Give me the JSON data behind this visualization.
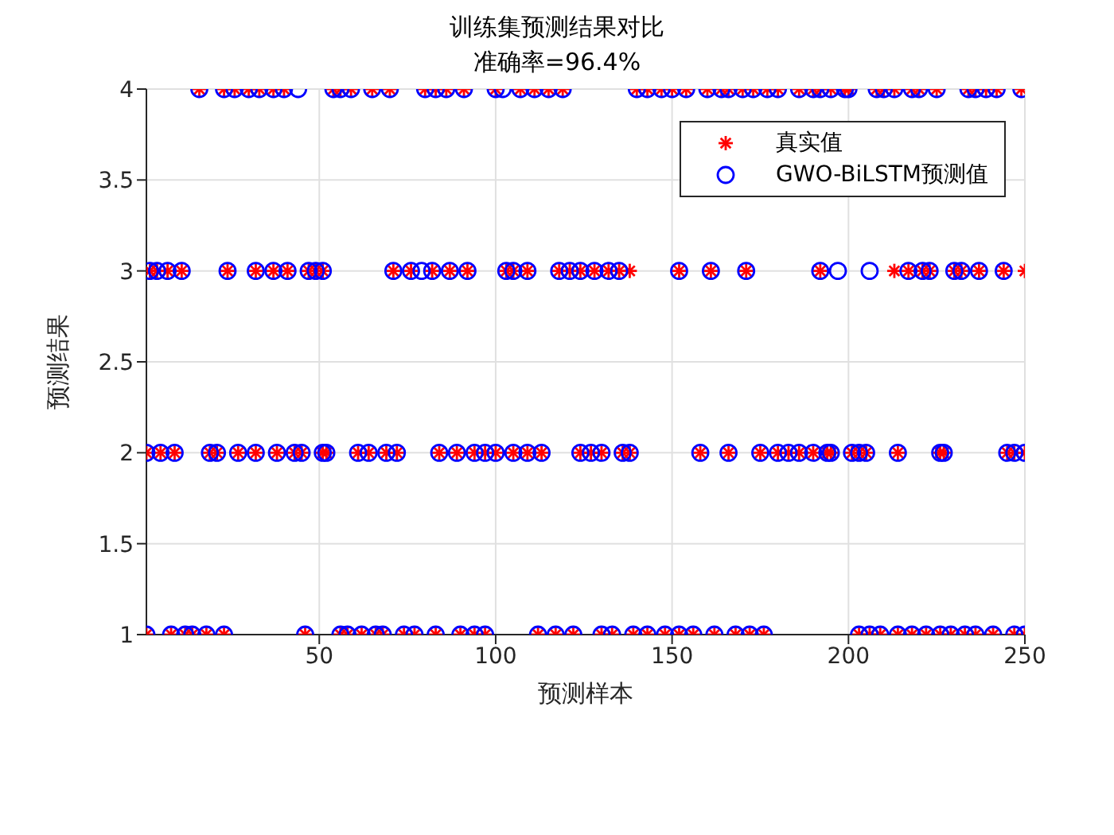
{
  "chart_data": {
    "type": "scatter",
    "title": "训练集预测结果对比",
    "subtitle": "准确率=96.4%",
    "xlabel": "预测样本",
    "ylabel": "预测结果",
    "xlim": [
      1,
      250
    ],
    "xticks": [
      50,
      100,
      150,
      200,
      250
    ],
    "ylim": [
      1,
      4
    ],
    "yticks": [
      1,
      1.5,
      2,
      2.5,
      3,
      3.5,
      4
    ],
    "grid": true,
    "legend": "top right",
    "series": [
      {
        "name": "真实值",
        "color": "#ff0000",
        "marker": "cross",
        "x": [
          16,
          23,
          26,
          30,
          33,
          37,
          40,
          54,
          56,
          59,
          65,
          70,
          80,
          83,
          86,
          91,
          100,
          107,
          111,
          115,
          119,
          140,
          143,
          147,
          150,
          154,
          160,
          164,
          166,
          170,
          173,
          177,
          180,
          186,
          190,
          192,
          195,
          199,
          200,
          208,
          210,
          213,
          218,
          220,
          225,
          234,
          236,
          239,
          242,
          249,
          2,
          4,
          7,
          11,
          24,
          32,
          37,
          41,
          47,
          49,
          51,
          71,
          76,
          82,
          87,
          92,
          103,
          105,
          109,
          118,
          121,
          124,
          128,
          132,
          135,
          152,
          161,
          171,
          192,
          217,
          221,
          223,
          230,
          232,
          237,
          244,
          138,
          213,
          250,
          1,
          5,
          9,
          19,
          21,
          27,
          32,
          38,
          43,
          45,
          51,
          52,
          61,
          64,
          69,
          72,
          84,
          89,
          94,
          97,
          100,
          105,
          109,
          113,
          124,
          127,
          130,
          136,
          138,
          158,
          166,
          175,
          180,
          183,
          186,
          190,
          194,
          195,
          201,
          203,
          205,
          214,
          226,
          227,
          245,
          247,
          250,
          1,
          8,
          12,
          14,
          18,
          23,
          46,
          56,
          58,
          62,
          66,
          68,
          74,
          77,
          83,
          90,
          94,
          97,
          112,
          117,
          122,
          130,
          133,
          139,
          143,
          148,
          152,
          156,
          162,
          168,
          172,
          176,
          203,
          206,
          209,
          214,
          218,
          222,
          226,
          229,
          233,
          236,
          241,
          247,
          250
        ],
        "values": [
          4,
          4,
          4,
          4,
          4,
          4,
          4,
          4,
          4,
          4,
          4,
          4,
          4,
          4,
          4,
          4,
          4,
          4,
          4,
          4,
          4,
          4,
          4,
          4,
          4,
          4,
          4,
          4,
          4,
          4,
          4,
          4,
          4,
          4,
          4,
          4,
          4,
          4,
          4,
          4,
          4,
          4,
          4,
          4,
          4,
          4,
          4,
          4,
          4,
          4,
          3,
          3,
          3,
          3,
          3,
          3,
          3,
          3,
          3,
          3,
          3,
          3,
          3,
          3,
          3,
          3,
          3,
          3,
          3,
          3,
          3,
          3,
          3,
          3,
          3,
          3,
          3,
          3,
          3,
          3,
          3,
          3,
          3,
          3,
          3,
          3,
          3,
          3,
          3,
          2,
          2,
          2,
          2,
          2,
          2,
          2,
          2,
          2,
          2,
          2,
          2,
          2,
          2,
          2,
          2,
          2,
          2,
          2,
          2,
          2,
          2,
          2,
          2,
          2,
          2,
          2,
          2,
          2,
          2,
          2,
          2,
          2,
          2,
          2,
          2,
          2,
          2,
          2,
          2,
          2,
          2,
          2,
          2,
          2,
          2,
          2,
          1,
          1,
          1,
          1,
          1,
          1,
          1,
          1,
          1,
          1,
          1,
          1,
          1,
          1,
          1,
          1,
          1,
          1,
          1,
          1,
          1,
          1,
          1,
          1,
          1,
          1,
          1,
          1,
          1,
          1,
          1,
          1,
          1,
          1,
          1,
          1,
          1,
          1,
          1,
          1,
          1,
          1,
          1,
          1,
          1
        ]
      },
      {
        "name": "GWO-BiLSTM预测值",
        "color": "#0000ff",
        "marker": "circle",
        "x": [
          16,
          23,
          26,
          30,
          33,
          37,
          40,
          54,
          56,
          59,
          65,
          70,
          80,
          83,
          86,
          91,
          100,
          107,
          111,
          115,
          119,
          140,
          143,
          147,
          150,
          154,
          160,
          164,
          166,
          170,
          173,
          177,
          180,
          186,
          190,
          192,
          195,
          199,
          200,
          208,
          210,
          213,
          218,
          220,
          225,
          234,
          236,
          239,
          242,
          249,
          44,
          102,
          2,
          4,
          7,
          11,
          24,
          32,
          37,
          41,
          47,
          49,
          51,
          71,
          76,
          82,
          87,
          92,
          103,
          105,
          109,
          118,
          121,
          124,
          128,
          132,
          135,
          152,
          161,
          171,
          192,
          217,
          221,
          223,
          230,
          232,
          237,
          244,
          79,
          197,
          206,
          1,
          5,
          9,
          19,
          21,
          27,
          32,
          38,
          43,
          45,
          51,
          52,
          61,
          64,
          69,
          72,
          84,
          89,
          94,
          97,
          100,
          105,
          109,
          113,
          124,
          127,
          130,
          136,
          138,
          158,
          166,
          175,
          180,
          183,
          186,
          190,
          194,
          195,
          201,
          203,
          205,
          214,
          226,
          227,
          245,
          247,
          250,
          1,
          8,
          12,
          14,
          18,
          23,
          46,
          56,
          58,
          62,
          66,
          68,
          74,
          77,
          83,
          90,
          94,
          97,
          112,
          117,
          122,
          130,
          133,
          139,
          143,
          148,
          152,
          156,
          162,
          168,
          172,
          176,
          203,
          206,
          209,
          214,
          218,
          222,
          226,
          229,
          233,
          236,
          241,
          247,
          250
        ],
        "values": [
          4,
          4,
          4,
          4,
          4,
          4,
          4,
          4,
          4,
          4,
          4,
          4,
          4,
          4,
          4,
          4,
          4,
          4,
          4,
          4,
          4,
          4,
          4,
          4,
          4,
          4,
          4,
          4,
          4,
          4,
          4,
          4,
          4,
          4,
          4,
          4,
          4,
          4,
          4,
          4,
          4,
          4,
          4,
          4,
          4,
          4,
          4,
          4,
          4,
          4,
          4,
          4,
          3,
          3,
          3,
          3,
          3,
          3,
          3,
          3,
          3,
          3,
          3,
          3,
          3,
          3,
          3,
          3,
          3,
          3,
          3,
          3,
          3,
          3,
          3,
          3,
          3,
          3,
          3,
          3,
          3,
          3,
          3,
          3,
          3,
          3,
          3,
          3,
          3,
          3,
          3,
          2,
          2,
          2,
          2,
          2,
          2,
          2,
          2,
          2,
          2,
          2,
          2,
          2,
          2,
          2,
          2,
          2,
          2,
          2,
          2,
          2,
          2,
          2,
          2,
          2,
          2,
          2,
          2,
          2,
          2,
          2,
          2,
          2,
          2,
          2,
          2,
          2,
          2,
          2,
          2,
          2,
          2,
          2,
          2,
          2,
          2,
          2,
          1,
          1,
          1,
          1,
          1,
          1,
          1,
          1,
          1,
          1,
          1,
          1,
          1,
          1,
          1,
          1,
          1,
          1,
          1,
          1,
          1,
          1,
          1,
          1,
          1,
          1,
          1,
          1,
          1,
          1,
          1,
          1,
          1,
          1,
          1,
          1,
          1,
          1,
          1,
          1,
          1,
          1,
          1,
          1,
          1
        ]
      }
    ]
  }
}
